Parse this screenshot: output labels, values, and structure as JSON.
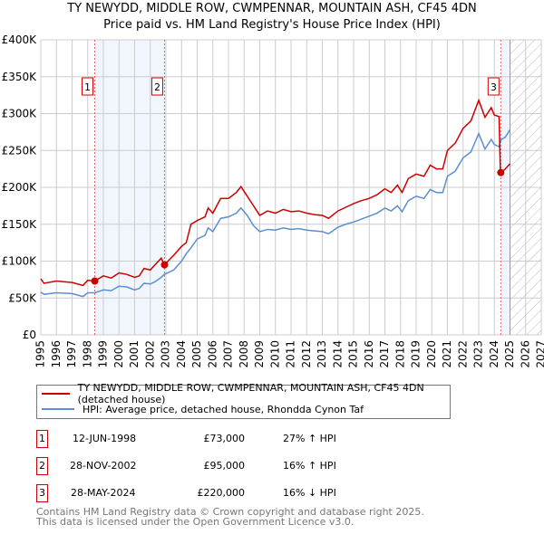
{
  "chart_data": {
    "type": "line",
    "title": "TY NEWYDD, MIDDLE ROW, CWMPENNAR, MOUNTAIN ASH, CF45 4DN",
    "subtitle": "Price paid vs. HM Land Registry's House Price Index (HPI)",
    "xlim": [
      1995,
      2027
    ],
    "ylim": [
      0,
      400000
    ],
    "x_ticks": [
      "1995",
      "1996",
      "1997",
      "1998",
      "1999",
      "2000",
      "2001",
      "2002",
      "2003",
      "2004",
      "2005",
      "2006",
      "2007",
      "2008",
      "2009",
      "2010",
      "2011",
      "2012",
      "2013",
      "2014",
      "2015",
      "2016",
      "2017",
      "2018",
      "2019",
      "2020",
      "2021",
      "2022",
      "2023",
      "2024",
      "2025",
      "2026",
      "2027"
    ],
    "y_ticks": [
      {
        "v": 0,
        "label": "£0"
      },
      {
        "v": 50000,
        "label": "£50K"
      },
      {
        "v": 100000,
        "label": "£100K"
      },
      {
        "v": 150000,
        "label": "£150K"
      },
      {
        "v": 200000,
        "label": "£200K"
      },
      {
        "v": 250000,
        "label": "£250K"
      },
      {
        "v": 300000,
        "label": "£300K"
      },
      {
        "v": 350000,
        "label": "£350K"
      },
      {
        "v": 400000,
        "label": "£400K"
      }
    ],
    "grid": true,
    "forecast_hatch_from": 2025.0,
    "series": [
      {
        "name": "TY NEWYDD, MIDDLE ROW, CWMPENNAR, MOUNTAIN ASH, CF45 4DN (detached house)",
        "color": "#cc0000",
        "x": [
          1995,
          1995.2,
          1996,
          1997,
          1997.7,
          1998,
          1998.45,
          1999,
          1999.5,
          2000,
          2000.5,
          2001,
          2001.3,
          2001.6,
          2002,
          2002.3,
          2002.7,
          2002.9,
          2003.5,
          2004,
          2004.3,
          2004.6,
          2005,
          2005.5,
          2005.7,
          2006,
          2006.5,
          2007,
          2007.5,
          2007.8,
          2008.2,
          2008.6,
          2009,
          2009.5,
          2010,
          2010.5,
          2011,
          2011.5,
          2012,
          2012.5,
          2013,
          2013.4,
          2014,
          2014.5,
          2015,
          2015.5,
          2016,
          2016.5,
          2017,
          2017.4,
          2017.8,
          2018.1,
          2018.5,
          2019,
          2019.5,
          2019.9,
          2020.3,
          2020.7,
          2021,
          2021.5,
          2022,
          2022.5,
          2023,
          2023.4,
          2023.8,
          2024,
          2024.3,
          2024.38,
          2024.45,
          2024.7,
          2025
        ],
        "y": [
          76000,
          70000,
          73000,
          71000,
          67000,
          74000,
          73000,
          80000,
          77000,
          84000,
          82000,
          78000,
          80000,
          90000,
          88000,
          95000,
          104000,
          95000,
          108000,
          120000,
          125000,
          150000,
          155000,
          160000,
          172000,
          165000,
          185000,
          185000,
          193000,
          201000,
          188000,
          175000,
          162000,
          168000,
          165000,
          170000,
          167000,
          168000,
          165000,
          163000,
          162000,
          158000,
          168000,
          173000,
          178000,
          182000,
          185000,
          190000,
          198000,
          193000,
          203000,
          193000,
          212000,
          218000,
          215000,
          230000,
          225000,
          225000,
          250000,
          260000,
          280000,
          290000,
          318000,
          295000,
          308000,
          298000,
          296000,
          225000,
          220000,
          225000,
          232000
        ]
      },
      {
        "name": "HPI: Average price, detached house, Rhondda Cynon Taf",
        "color": "#5b8fd0",
        "x": [
          1995,
          1995.2,
          1996,
          1997,
          1997.7,
          1998,
          1998.45,
          1999,
          1999.5,
          2000,
          2000.5,
          2001,
          2001.3,
          2001.6,
          2002,
          2002.3,
          2002.7,
          2002.9,
          2003.5,
          2004,
          2004.3,
          2004.6,
          2005,
          2005.5,
          2005.7,
          2006,
          2006.5,
          2007,
          2007.5,
          2007.8,
          2008.2,
          2008.6,
          2009,
          2009.5,
          2010,
          2010.5,
          2011,
          2011.5,
          2012,
          2012.5,
          2013,
          2013.4,
          2014,
          2014.5,
          2015,
          2015.5,
          2016,
          2016.5,
          2017,
          2017.4,
          2017.8,
          2018.1,
          2018.5,
          2019,
          2019.5,
          2019.9,
          2020.3,
          2020.7,
          2021,
          2021.5,
          2022,
          2022.5,
          2023,
          2023.4,
          2023.8,
          2024,
          2024.3,
          2024.38,
          2024.45,
          2024.7,
          2025
        ],
        "y": [
          58000,
          55000,
          57000,
          56000,
          52000,
          57000,
          57000,
          61000,
          60000,
          66000,
          65000,
          61000,
          63000,
          70000,
          69000,
          72000,
          78000,
          82000,
          88000,
          100000,
          110000,
          118000,
          130000,
          135000,
          145000,
          140000,
          158000,
          160000,
          165000,
          172000,
          162000,
          148000,
          140000,
          143000,
          142000,
          145000,
          143000,
          144000,
          142000,
          141000,
          140000,
          137000,
          146000,
          150000,
          153000,
          157000,
          161000,
          165000,
          172000,
          168000,
          175000,
          167000,
          182000,
          188000,
          185000,
          197000,
          193000,
          193000,
          215000,
          222000,
          240000,
          248000,
          273000,
          252000,
          265000,
          258000,
          255000,
          262000,
          265000,
          268000,
          278000
        ]
      }
    ],
    "sales": [
      {
        "n": "1",
        "x": 1998.45,
        "y": 73000
      },
      {
        "n": "2",
        "x": 2002.91,
        "y": 95000
      },
      {
        "n": "3",
        "x": 2024.41,
        "y": 220000
      }
    ]
  },
  "legend": {
    "red": "TY NEWYDD, MIDDLE ROW, CWMPENNAR, MOUNTAIN ASH, CF45 4DN (detached house)",
    "blue": "HPI: Average price, detached house, Rhondda Cynon Taf"
  },
  "transactions": [
    {
      "n": "1",
      "date": "12-JUN-1998",
      "price": "£73,000",
      "hpi": "27% ↑ HPI"
    },
    {
      "n": "2",
      "date": "28-NOV-2002",
      "price": "£95,000",
      "hpi": "16% ↑ HPI"
    },
    {
      "n": "3",
      "date": "28-MAY-2024",
      "price": "£220,000",
      "hpi": "16% ↓ HPI"
    }
  ],
  "footer": {
    "line1": "Contains HM Land Registry data © Crown copyright and database right 2025.",
    "line2": "This data is licensed under the Open Government Licence v3.0."
  }
}
